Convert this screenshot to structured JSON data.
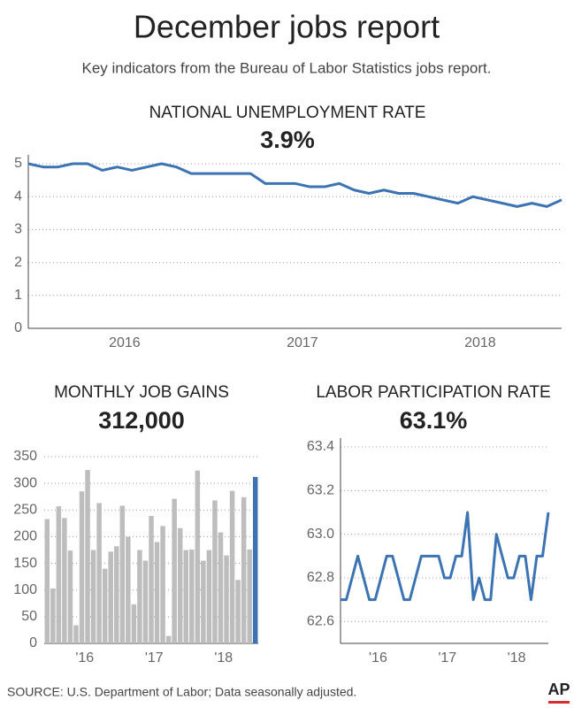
{
  "title": "December jobs report",
  "subtitle": "Key indicators from the Bureau of Labor Statistics jobs report.",
  "source": "SOURCE: U.S. Department of Labor; Data seasonally adjusted.",
  "logo": "AP",
  "chart_data": [
    {
      "type": "line",
      "title": "NATIONAL UNEMPLOYMENT RATE",
      "headline": "3.9%",
      "series": [
        {
          "color": "#3b73b3",
          "values": [
            5.0,
            4.9,
            4.9,
            5.0,
            5.0,
            4.8,
            4.9,
            4.8,
            4.9,
            5.0,
            4.9,
            4.7,
            4.7,
            4.7,
            4.7,
            4.7,
            4.4,
            4.4,
            4.4,
            4.3,
            4.3,
            4.4,
            4.2,
            4.1,
            4.2,
            4.1,
            4.1,
            4.0,
            3.9,
            3.8,
            4.0,
            3.9,
            3.8,
            3.7,
            3.8,
            3.7,
            3.9
          ]
        }
      ],
      "xlim": [
        0,
        36
      ],
      "xticks": [
        {
          "value": 6.5,
          "label": "2016"
        },
        {
          "value": 18.5,
          "label": "2017"
        },
        {
          "value": 30.5,
          "label": "2018"
        }
      ],
      "ylim": [
        0,
        5
      ],
      "yticks": [
        0,
        1,
        2,
        3,
        4,
        5
      ],
      "grid": true
    },
    {
      "type": "bar",
      "title": "MONTHLY JOB GAINS",
      "headline": "312,000",
      "values": [
        233,
        103,
        257,
        235,
        174,
        34,
        285,
        325,
        175,
        263,
        140,
        172,
        182,
        258,
        200,
        73,
        175,
        155,
        239,
        190,
        220,
        14,
        271,
        216,
        175,
        176,
        324,
        155,
        175,
        268,
        208,
        165,
        286,
        119,
        274,
        176,
        312
      ],
      "colors": [
        "#bdbdbd",
        "#bdbdbd",
        "#bdbdbd",
        "#bdbdbd",
        "#bdbdbd",
        "#bdbdbd",
        "#bdbdbd",
        "#bdbdbd",
        "#bdbdbd",
        "#bdbdbd",
        "#bdbdbd",
        "#bdbdbd",
        "#bdbdbd",
        "#bdbdbd",
        "#bdbdbd",
        "#bdbdbd",
        "#bdbdbd",
        "#bdbdbd",
        "#bdbdbd",
        "#bdbdbd",
        "#bdbdbd",
        "#bdbdbd",
        "#bdbdbd",
        "#bdbdbd",
        "#bdbdbd",
        "#bdbdbd",
        "#bdbdbd",
        "#bdbdbd",
        "#bdbdbd",
        "#bdbdbd",
        "#bdbdbd",
        "#bdbdbd",
        "#bdbdbd",
        "#bdbdbd",
        "#bdbdbd",
        "#bdbdbd",
        "#3b73b3"
      ],
      "xlim": [
        -0.5,
        36.5
      ],
      "xticks": [
        {
          "value": 6.5,
          "label": "'16"
        },
        {
          "value": 18.5,
          "label": "'17"
        },
        {
          "value": 30.5,
          "label": "'18"
        }
      ],
      "ylim": [
        0,
        350
      ],
      "yticks": [
        0,
        50,
        100,
        150,
        200,
        250,
        300,
        350
      ],
      "grid": true
    },
    {
      "type": "line",
      "title": "LABOR PARTICIPATION RATE",
      "headline": "63.1%",
      "series": [
        {
          "color": "#3b73b3",
          "values": [
            62.7,
            62.7,
            62.8,
            62.9,
            62.8,
            62.7,
            62.7,
            62.8,
            62.9,
            62.9,
            62.8,
            62.7,
            62.7,
            62.8,
            62.9,
            62.9,
            62.9,
            62.9,
            62.8,
            62.8,
            62.9,
            62.9,
            63.1,
            62.7,
            62.8,
            62.7,
            62.7,
            63.0,
            62.9,
            62.8,
            62.8,
            62.9,
            62.9,
            62.7,
            62.9,
            62.9,
            63.1
          ]
        }
      ],
      "xlim": [
        0,
        36
      ],
      "xticks": [
        {
          "value": 6.5,
          "label": "'16"
        },
        {
          "value": 18.5,
          "label": "'17"
        },
        {
          "value": 30.5,
          "label": "'18"
        }
      ],
      "ylim": [
        62.5,
        63.4
      ],
      "yticks": [
        62.6,
        62.8,
        {
          "value": 63.0,
          "label": "63.0"
        },
        63.2,
        63.4
      ],
      "grid": true
    }
  ]
}
